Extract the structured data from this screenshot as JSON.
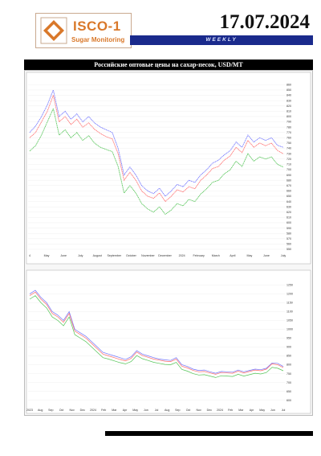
{
  "header": {
    "logo_word": "ISCO-1",
    "logo_sub": "Sugar Monitoring",
    "date": "17.07.2024",
    "weekly": "WEEKLY",
    "intro": ""
  },
  "chart_section": {
    "title": "Российские оптовые цены на сахар-песок, USD/MT"
  },
  "footer": {
    "left": "",
    "center": "",
    "right": "",
    "far": ""
  },
  "colors": {
    "brand": "#d9782a",
    "banner": "#1a2a8c",
    "series_blue": "#6f73ff",
    "series_red": "#ff6b6b",
    "series_green": "#52c455"
  },
  "chart_data": [
    {
      "type": "line",
      "title": "",
      "x_ticks": [
        "4",
        "May",
        "June",
        "July",
        "August",
        "September",
        "October",
        "November",
        "December",
        "2024",
        "February",
        "March",
        "April",
        "May",
        "June",
        "July"
      ],
      "y_ticks": [
        860,
        850,
        840,
        830,
        820,
        810,
        800,
        790,
        780,
        770,
        760,
        750,
        740,
        730,
        720,
        710,
        700,
        690,
        680,
        670,
        660,
        650,
        640,
        630,
        620,
        610,
        600,
        590,
        580,
        570,
        560,
        550
      ],
      "ylim": [
        550,
        865
      ],
      "series": [
        {
          "values": [
            770,
            782,
            800,
            822,
            850,
            800,
            810,
            795,
            805,
            790,
            800,
            788,
            780,
            775,
            770,
            740,
            690,
            705,
            690,
            670,
            660,
            655,
            665,
            650,
            660,
            672,
            668,
            680,
            676,
            690,
            700,
            712,
            718,
            728,
            736,
            752,
            742,
            765,
            752,
            760,
            755,
            760,
            746,
            742
          ]
        },
        {
          "values": [
            760,
            770,
            790,
            810,
            840,
            790,
            800,
            785,
            795,
            780,
            788,
            776,
            768,
            762,
            758,
            730,
            680,
            695,
            680,
            660,
            650,
            646,
            656,
            640,
            650,
            662,
            658,
            668,
            664,
            680,
            690,
            702,
            706,
            718,
            726,
            742,
            732,
            755,
            742,
            750,
            745,
            750,
            736,
            730
          ]
        },
        {
          "values": [
            735,
            745,
            765,
            790,
            815,
            765,
            775,
            760,
            770,
            755,
            764,
            750,
            742,
            738,
            734,
            706,
            656,
            670,
            656,
            636,
            626,
            620,
            630,
            616,
            624,
            636,
            632,
            644,
            640,
            654,
            664,
            676,
            680,
            692,
            700,
            716,
            706,
            730,
            716,
            724,
            720,
            724,
            710,
            705
          ]
        }
      ]
    },
    {
      "type": "line",
      "title": "",
      "x_ticks": [
        "2023",
        "Aug",
        "Sep",
        "Oct",
        "Nov",
        "Dec",
        "2024",
        "Feb",
        "Mar",
        "Apr",
        "May",
        "Jun",
        "Jul",
        "Aug",
        "Sep",
        "Oct",
        "Nov",
        "Dec",
        "2024",
        "Feb",
        "Mar",
        "Apr",
        "May",
        "Jun",
        "Jul"
      ],
      "y_ticks": [
        1250,
        1200,
        1150,
        1100,
        1050,
        1000,
        950,
        900,
        850,
        800,
        750,
        700,
        650,
        600
      ],
      "ylim": [
        580,
        1270
      ],
      "series": [
        {
          "values": [
            1200,
            1220,
            1180,
            1150,
            1100,
            1080,
            1050,
            1100,
            1000,
            980,
            960,
            930,
            900,
            870,
            860,
            850,
            840,
            830,
            845,
            880,
            860,
            850,
            840,
            832,
            828,
            824,
            840,
            800,
            790,
            775,
            768,
            770,
            760,
            752,
            762,
            760,
            758,
            770,
            760,
            768,
            775,
            772,
            780,
            810,
            808,
            790
          ]
        },
        {
          "values": [
            1190,
            1210,
            1170,
            1140,
            1090,
            1070,
            1040,
            1090,
            990,
            970,
            950,
            920,
            890,
            860,
            850,
            840,
            830,
            822,
            836,
            872,
            852,
            842,
            832,
            826,
            820,
            818,
            832,
            792,
            782,
            768,
            760,
            762,
            754,
            746,
            756,
            754,
            752,
            764,
            754,
            762,
            770,
            766,
            775,
            805,
            800,
            784
          ]
        },
        {
          "values": [
            1170,
            1190,
            1150,
            1120,
            1070,
            1050,
            1020,
            1070,
            970,
            950,
            930,
            900,
            870,
            840,
            832,
            822,
            812,
            805,
            818,
            852,
            834,
            824,
            814,
            808,
            802,
            800,
            814,
            774,
            764,
            750,
            742,
            744,
            736,
            728,
            738,
            736,
            734,
            746,
            736,
            744,
            752,
            748,
            756,
            785,
            780,
            766
          ]
        }
      ]
    }
  ]
}
